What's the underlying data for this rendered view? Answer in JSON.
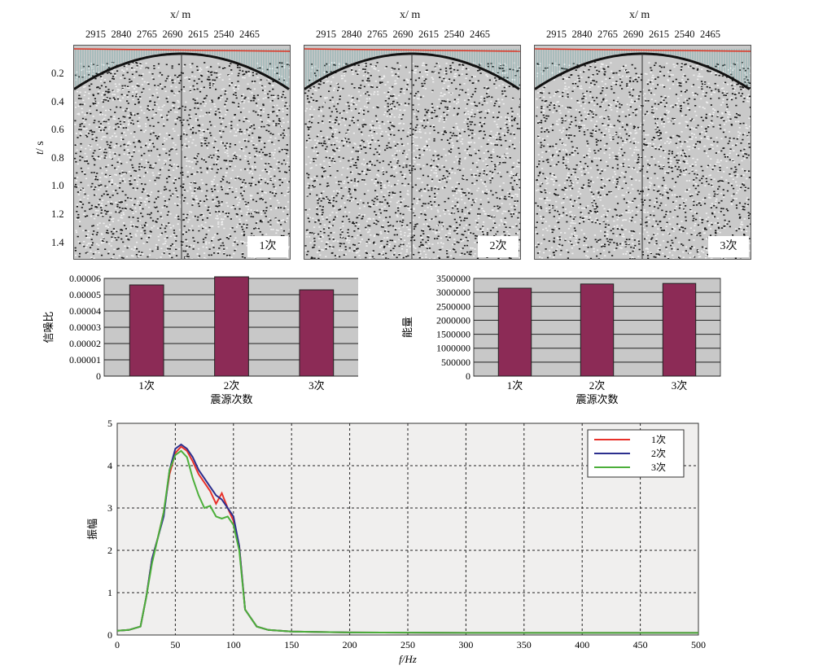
{
  "seismic": {
    "x_axis_label": "x",
    "x_axis_unit": "/ m",
    "x_ticks": [
      "2915",
      "2840",
      "2765",
      "2690",
      "2615",
      "2540",
      "2465"
    ],
    "y_axis_label": "t",
    "y_axis_unit": "/ s",
    "y_ticks": [
      "0.2",
      "0.4",
      "0.6",
      "0.8",
      "1.0",
      "1.2",
      "1.4"
    ],
    "panels": [
      {
        "label": "1次"
      },
      {
        "label": "2次"
      },
      {
        "label": "3次"
      }
    ]
  },
  "chart_data": [
    {
      "type": "bar",
      "xlabel": "震源次数",
      "ylabel": "信噪比",
      "categories": [
        "1次",
        "2次",
        "3次"
      ],
      "values": [
        5.6e-05,
        6.1e-05,
        5.3e-05
      ],
      "ylim": [
        0,
        6e-05
      ],
      "yticks": [
        "0",
        "0.00001",
        "0.00002",
        "0.00003",
        "0.00004",
        "0.00005",
        "0.00006"
      ],
      "bar_color": "#8c2b56",
      "background": "#c8c8c8",
      "grid": true
    },
    {
      "type": "bar",
      "xlabel": "震源次数",
      "ylabel": "能量",
      "categories": [
        "1次",
        "2次",
        "3次"
      ],
      "values": [
        3150000,
        3300000,
        3320000
      ],
      "ylim": [
        0,
        3500000
      ],
      "yticks": [
        "0",
        "500000",
        "1000000",
        "1500000",
        "2000000",
        "2500000",
        "3000000",
        "3500000"
      ],
      "bar_color": "#8c2b56",
      "background": "#c8c8c8",
      "grid": true
    },
    {
      "type": "line",
      "xlabel": "f/Hz",
      "ylabel": "振幅",
      "xlim": [
        0,
        500
      ],
      "ylim": [
        0,
        5
      ],
      "xticks": [
        "0",
        "50",
        "100",
        "150",
        "200",
        "250",
        "300",
        "350",
        "400",
        "450",
        "500"
      ],
      "yticks": [
        "0",
        "1",
        "2",
        "3",
        "4",
        "5"
      ],
      "grid": true,
      "legend_position": "top-right",
      "series": [
        {
          "name": "1次",
          "color": "#e8312a",
          "x": [
            0,
            10,
            20,
            25,
            30,
            35,
            40,
            45,
            50,
            55,
            60,
            65,
            70,
            75,
            80,
            85,
            90,
            95,
            100,
            105,
            110,
            120,
            130,
            150,
            200,
            300,
            400,
            500
          ],
          "y": [
            0.1,
            0.12,
            0.2,
            0.9,
            1.8,
            2.3,
            2.9,
            3.8,
            4.3,
            4.45,
            4.35,
            4.1,
            3.8,
            3.6,
            3.4,
            3.1,
            3.35,
            3.0,
            2.7,
            2.1,
            0.6,
            0.2,
            0.12,
            0.08,
            0.06,
            0.05,
            0.05,
            0.05
          ]
        },
        {
          "name": "2次",
          "color": "#2c2f8e",
          "x": [
            0,
            10,
            20,
            25,
            30,
            35,
            40,
            45,
            50,
            55,
            60,
            65,
            70,
            75,
            80,
            85,
            90,
            95,
            100,
            105,
            110,
            120,
            130,
            150,
            200,
            300,
            400,
            500
          ],
          "y": [
            0.1,
            0.12,
            0.2,
            0.9,
            1.8,
            2.3,
            2.8,
            3.9,
            4.4,
            4.5,
            4.4,
            4.2,
            3.9,
            3.7,
            3.5,
            3.3,
            3.2,
            3.0,
            2.8,
            2.1,
            0.6,
            0.2,
            0.12,
            0.08,
            0.06,
            0.05,
            0.05,
            0.05
          ]
        },
        {
          "name": "3次",
          "color": "#4caf3a",
          "x": [
            0,
            10,
            20,
            25,
            30,
            35,
            40,
            45,
            50,
            55,
            60,
            65,
            70,
            75,
            80,
            85,
            90,
            95,
            100,
            105,
            110,
            120,
            130,
            150,
            200,
            300,
            400,
            500
          ],
          "y": [
            0.1,
            0.12,
            0.2,
            0.9,
            1.7,
            2.3,
            2.9,
            3.9,
            4.25,
            4.35,
            4.2,
            3.7,
            3.3,
            3.0,
            3.05,
            2.8,
            2.75,
            2.8,
            2.6,
            2.0,
            0.6,
            0.2,
            0.12,
            0.08,
            0.06,
            0.05,
            0.05,
            0.05
          ]
        }
      ]
    }
  ]
}
